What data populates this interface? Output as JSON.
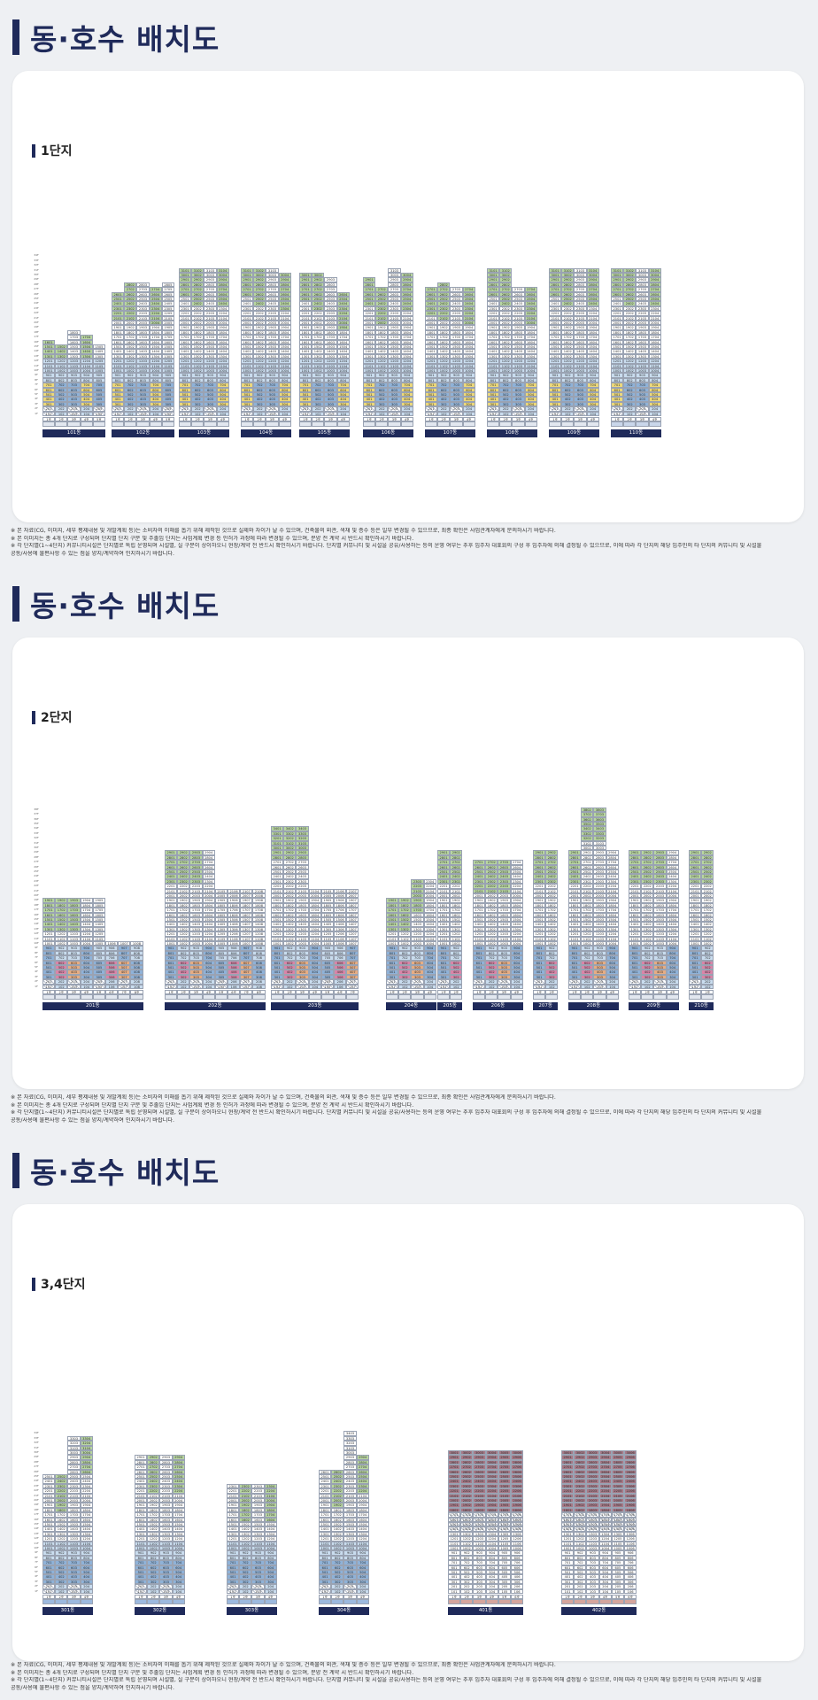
{
  "sections": [
    {
      "title": "동·호수 배치도",
      "subtitle": "1단지"
    },
    {
      "title": "동·호수 배치도",
      "subtitle": "2단지"
    },
    {
      "title": "동·호수 배치도",
      "subtitle": "3,4단지"
    }
  ],
  "buildings": {
    "s1": [
      "101동",
      "102동",
      "103동",
      "104동",
      "105동",
      "106동",
      "107동",
      "108동",
      "109동",
      "110동"
    ],
    "s2": [
      "201동",
      "202동",
      "203동",
      "204동",
      "205동",
      "206동",
      "207동",
      "208동",
      "209동",
      "210동"
    ],
    "s3": [
      "301동",
      "302동",
      "303동",
      "304동",
      "401동",
      "402동"
    ]
  },
  "notes": [
    "※ 본 자료(CG, 이미지, 세부 평제내용 및 개발계획 등)는 소비자의 이해를 돕기 위해 제작된 것으로 실제와 차이가 날 수 있으며, 건축물의 외관, 색채 및 층수 등은 일부 변경될 수 있으므로, 최종 확인은 사업관계자에게 문의하시기 바랍니다.",
    "※ 본 이미지는 총 4개 단지로 구성되며 단지별 단지 구분 및 주출입 단지는 사업계획 변경 등 인허가 과정에 따라 변경될 수 있으며, 분양 전 계약 시 반드시 확인하시기 바랍니다.",
    "※ 각 단지별(1~4단지) 커뮤니티시설은 단지별로 독립 운영되며 시설별, 실 구분이 상이하오니 현장/계약 전 반드시 확인하시기 바랍니다. 단지별 커뮤니티 및 시설을 공유/사용하는 등의 운영 여부는 추후 입주자 대표회의 구성 후 입주자에 의해 결정될 수 있으므로, 이에 따라 각 단지의 해당 입주민의 타 단지의 커뮤니티 및 시설물",
    "공동/사용에 불편사항 수 있는 점을 양지/계약하여 인지하시기 바랍니다."
  ]
}
